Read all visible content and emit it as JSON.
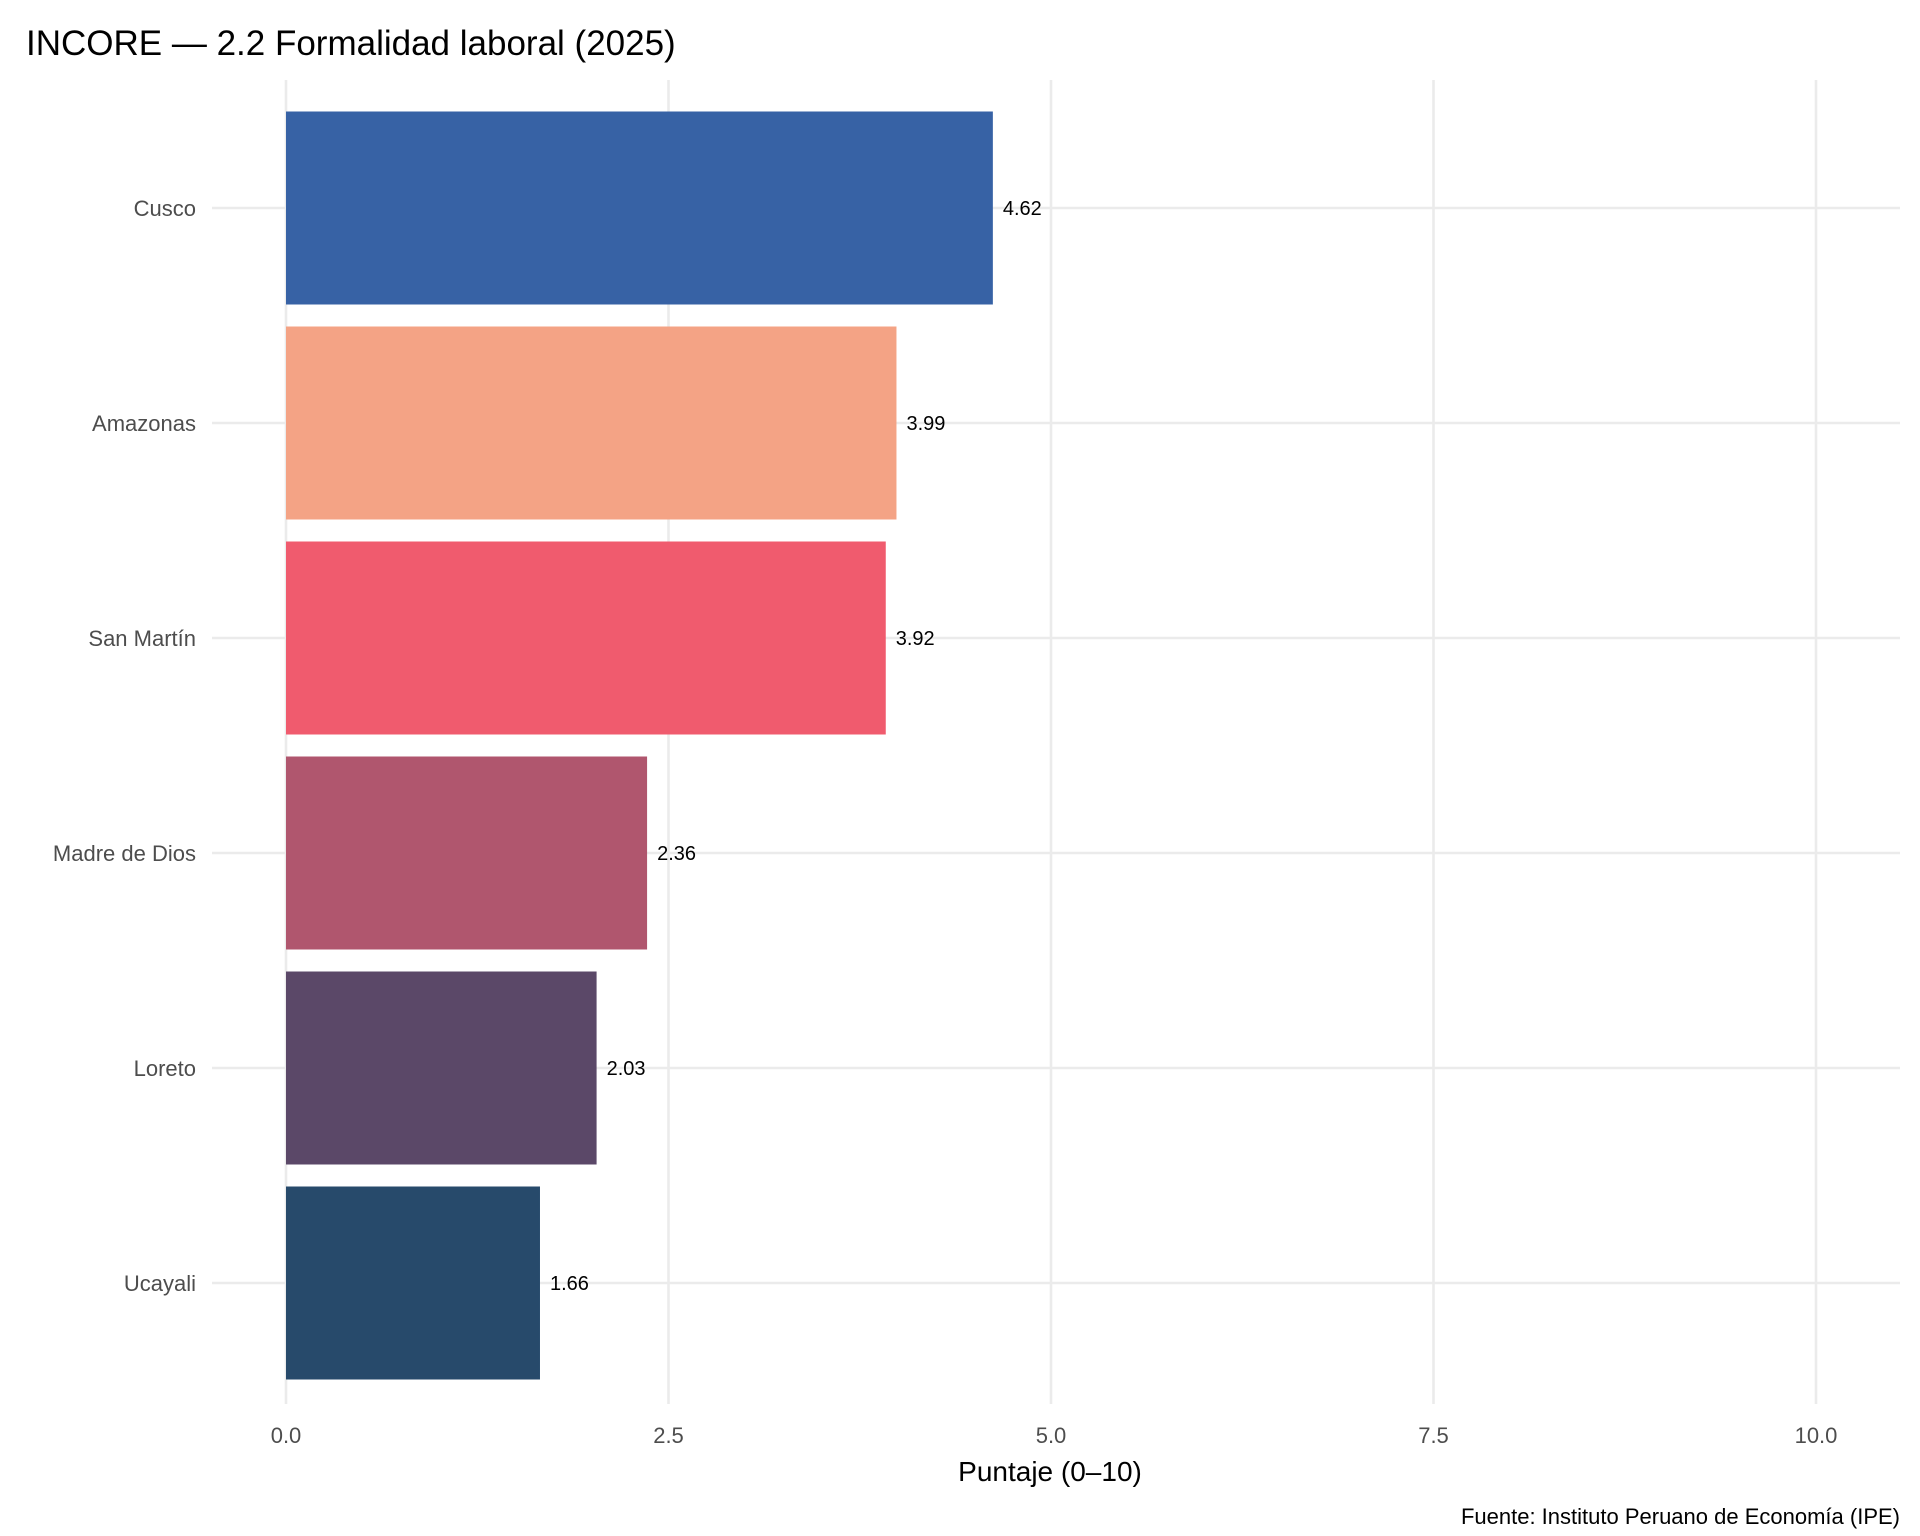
{
  "chart_data": {
    "type": "bar",
    "orientation": "horizontal",
    "title": "INCORE — 2.2 Formalidad laboral (2025)",
    "xlabel": "Puntaje (0–10)",
    "ylabel": "",
    "caption": "Fuente: Instituto Peruano de Economía (IPE)",
    "xlim": [
      0,
      10
    ],
    "xticks": [
      0,
      2.5,
      5,
      7.5,
      10
    ],
    "xtick_labels": [
      "0.0",
      "2.5",
      "5.0",
      "7.5",
      "10.0"
    ],
    "grid": true,
    "categories": [
      "Cusco",
      "Amazonas",
      "San Martín",
      "Madre de Dios",
      "Loreto",
      "Ucayali"
    ],
    "values": [
      4.62,
      3.99,
      3.92,
      2.36,
      2.03,
      1.66
    ],
    "value_labels": [
      "4.62",
      "3.99",
      "3.92",
      "2.36",
      "2.03",
      "1.66"
    ],
    "colors": [
      "#3762a5",
      "#f4a385",
      "#f05b6e",
      "#b0566e",
      "#5b4868",
      "#274a6b"
    ]
  }
}
